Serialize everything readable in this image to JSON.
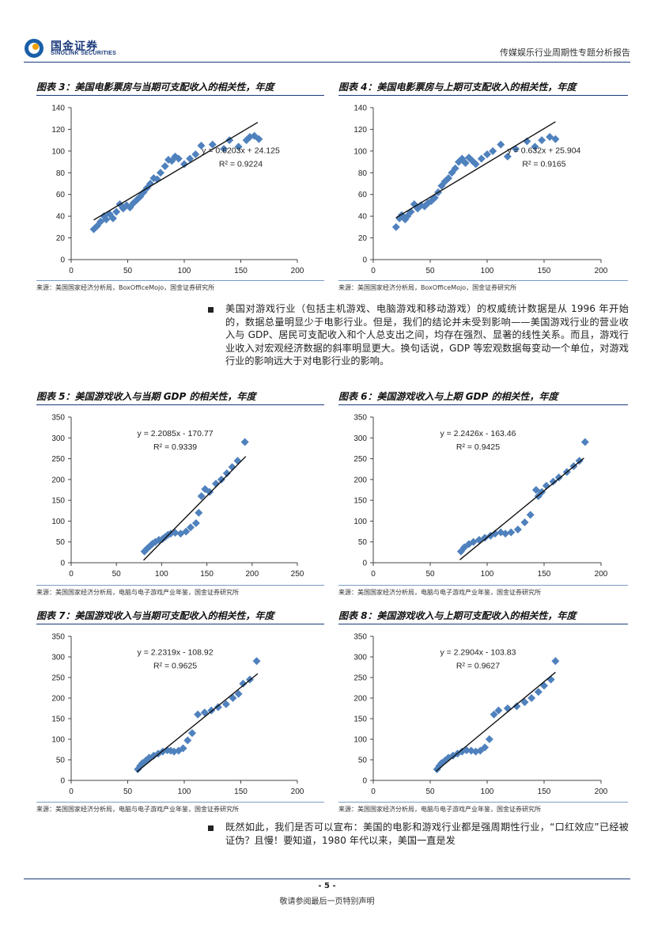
{
  "header": {
    "logo_cn": "国金证券",
    "logo_en": "SINOLINK SECURITIES",
    "report_title": "传媒娱乐行业周期性专题分析报告"
  },
  "paragraph1": "美国对游戏行业（包括主机游戏、电脑游戏和移动游戏）的权威统计数据是从 1996 年开始的，数据总量明显少于电影行业。但是，我们的结论并未受到影响——美国游戏行业的营业收入与 GDP、居民可支配收入和个人总支出之间，均存在强烈、显著的线性关系。而且，游戏行业收入对宏观经济数据的斜率明显更大。换句话说，GDP 等宏观数据每变动一个单位，对游戏行业的影响远大于对电影行业的影响。",
  "paragraph2": "既然如此，我们是否可以宣布：美国的电影和游戏行业都是强周期性行业，“口红效应”已经被证伪？且慢！要知道，1980 年代以来，美国一直是发",
  "footer": {
    "page": "- 5 -",
    "note": "敬请参阅最后一页特别声明"
  },
  "chart_data": [
    {
      "id": "fig3",
      "type": "scatter",
      "title": "图表 3：美国电影票房与当期可支配收入的相关性，年度",
      "source": "来源：美国国家经济分析局，BoxOfficeMojo，国金证券研究所",
      "xlim": [
        0,
        200
      ],
      "ylim": [
        0,
        140
      ],
      "xticks": [
        "0",
        "50",
        "100",
        "150",
        "200"
      ],
      "yticks": [
        "0",
        "20",
        "40",
        "60",
        "80",
        "100",
        "120",
        "140"
      ],
      "equation": "y = 0.6203x + 24.125",
      "r2": "R² = 0.9224",
      "trend": {
        "slope": 0.6203,
        "intercept": 24.125,
        "x0": 20,
        "x1": 165
      },
      "x": [
        20,
        23,
        26,
        29,
        31,
        34,
        37,
        40,
        43,
        46,
        49,
        52,
        55,
        58,
        61,
        64,
        67,
        70,
        73,
        76,
        79,
        83,
        86,
        89,
        92,
        95,
        100,
        105,
        110,
        115,
        125,
        135,
        140,
        148,
        155,
        158,
        162,
        166
      ],
      "y": [
        28,
        31,
        35,
        40,
        37,
        42,
        38,
        44,
        51,
        47,
        50,
        48,
        52,
        55,
        58,
        62,
        66,
        70,
        75,
        74,
        80,
        86,
        92,
        91,
        95,
        93,
        88,
        93,
        97,
        105,
        106,
        102,
        110,
        104,
        110,
        113,
        114,
        111
      ]
    },
    {
      "id": "fig4",
      "type": "scatter",
      "title": "图表 4：美国电影票房与上期可支配收入的相关性，年度",
      "source": "来源：美国国家经济分析局，BoxOfficeMojo，国金证券研究所",
      "xlim": [
        0,
        200
      ],
      "ylim": [
        0,
        140
      ],
      "xticks": [
        "0",
        "50",
        "100",
        "150",
        "200"
      ],
      "yticks": [
        "0",
        "20",
        "40",
        "60",
        "80",
        "100",
        "120",
        "140"
      ],
      "equation": "y = 0.632x + 25.904",
      "r2": "R² = 0.9165",
      "trend": {
        "slope": 0.632,
        "intercept": 25.904,
        "x0": 20,
        "x1": 160
      },
      "x": [
        20,
        23,
        25,
        28,
        30,
        33,
        36,
        39,
        42,
        45,
        48,
        51,
        54,
        57,
        60,
        63,
        66,
        69,
        72,
        75,
        78,
        81,
        84,
        87,
        90,
        95,
        100,
        105,
        112,
        118,
        125,
        135,
        142,
        148,
        155,
        160
      ],
      "y": [
        30,
        38,
        41,
        37,
        40,
        44,
        51,
        47,
        50,
        49,
        52,
        54,
        57,
        62,
        68,
        72,
        75,
        80,
        84,
        90,
        93,
        89,
        94,
        91,
        88,
        93,
        97,
        100,
        106,
        95,
        102,
        109,
        104,
        110,
        113,
        111
      ]
    },
    {
      "id": "fig5",
      "type": "scatter",
      "title": "图表 5：美国游戏收入与当期 GDP 的相关性，年度",
      "source": "来源：美国国家经济分析局，电脑与电子游戏产业年鉴，国金证券研究所",
      "xlim": [
        0,
        250
      ],
      "ylim": [
        0,
        350
      ],
      "xticks": [
        "0",
        "50",
        "100",
        "150",
        "200",
        "250"
      ],
      "yticks": [
        "0",
        "50",
        "100",
        "150",
        "200",
        "250",
        "300",
        "350"
      ],
      "equation": "y = 2.2085x - 170.77",
      "r2": "R² = 0.9339",
      "trend": {
        "slope": 2.2085,
        "intercept": -170.77,
        "x0": 80,
        "x1": 193
      },
      "x": [
        81,
        84,
        87,
        90,
        93,
        97,
        101,
        104,
        107,
        110,
        115,
        121,
        127,
        132,
        138,
        141,
        144,
        148,
        153,
        160,
        166,
        172,
        178,
        184,
        192
      ],
      "y": [
        27,
        34,
        40,
        46,
        50,
        55,
        57,
        62,
        67,
        70,
        72,
        70,
        75,
        85,
        95,
        120,
        160,
        177,
        170,
        190,
        200,
        215,
        230,
        245,
        290
      ]
    },
    {
      "id": "fig6",
      "type": "scatter",
      "title": "图表 6：美国游戏收入与上期 GDP 的相关性，年度",
      "source": "来源：美国国家经济分析局，电脑与电子游戏产业年鉴，国金证券研究所",
      "xlim": [
        0,
        200
      ],
      "ylim": [
        0,
        350
      ],
      "xticks": [
        "0",
        "50",
        "100",
        "150",
        "200"
      ],
      "yticks": [
        "0",
        "50",
        "100",
        "150",
        "200",
        "250",
        "300",
        "350"
      ],
      "equation": "y = 2.2426x - 163.46",
      "r2": "R² = 0.9425",
      "trend": {
        "slope": 2.2426,
        "intercept": -163.46,
        "x0": 76,
        "x1": 185
      },
      "x": [
        77,
        80,
        84,
        88,
        93,
        98,
        103,
        107,
        112,
        116,
        121,
        127,
        133,
        138,
        143,
        145,
        148,
        152,
        158,
        163,
        170,
        176,
        181,
        186
      ],
      "y": [
        27,
        37,
        45,
        50,
        55,
        60,
        65,
        70,
        73,
        70,
        73,
        80,
        97,
        115,
        175,
        160,
        170,
        185,
        195,
        205,
        218,
        232,
        245,
        290
      ]
    },
    {
      "id": "fig7",
      "type": "scatter",
      "title": "图表 7：美国游戏收入与当期可支配收入的相关性，年度",
      "source": "来源：美国国家经济分析局，电脑与电子游戏产业年鉴，国金证券研究所",
      "xlim": [
        0,
        200
      ],
      "ylim": [
        0,
        350
      ],
      "xticks": [
        "0",
        "50",
        "100",
        "150",
        "200"
      ],
      "yticks": [
        "0",
        "50",
        "100",
        "150",
        "200",
        "250",
        "300",
        "350"
      ],
      "equation": "y = 2.2319x - 108.92",
      "r2": "R² = 0.9625",
      "trend": {
        "slope": 2.2319,
        "intercept": -108.92,
        "x0": 58,
        "x1": 165
      },
      "x": [
        59,
        61,
        63,
        66,
        69,
        73,
        77,
        81,
        85,
        88,
        91,
        95,
        99,
        103,
        107,
        112,
        118,
        124,
        130,
        137,
        143,
        148,
        152,
        158,
        164
      ],
      "y": [
        27,
        35,
        42,
        48,
        55,
        60,
        65,
        70,
        73,
        72,
        70,
        72,
        78,
        97,
        115,
        160,
        165,
        170,
        178,
        185,
        200,
        210,
        235,
        245,
        290
      ]
    },
    {
      "id": "fig8",
      "type": "scatter",
      "title": "图表 8：美国游戏收入与上期可支配收入的相关性，年度",
      "source": "来源：美国国家经济分析局，电脑与电子游戏产业年鉴，国金证券研究所",
      "xlim": [
        0,
        200
      ],
      "ylim": [
        0,
        350
      ],
      "xticks": [
        "0",
        "50",
        "100",
        "150",
        "200"
      ],
      "yticks": [
        "0",
        "50",
        "100",
        "150",
        "200",
        "250",
        "300",
        "350"
      ],
      "equation": "y = 2.2904x - 103.83",
      "r2": "R² = 0.9627",
      "trend": {
        "slope": 2.2904,
        "intercept": -103.83,
        "x0": 55,
        "x1": 160
      },
      "x": [
        56,
        58,
        60,
        63,
        66,
        70,
        74,
        78,
        82,
        86,
        90,
        94,
        98,
        102,
        106,
        110,
        118,
        126,
        133,
        139,
        145,
        150,
        156,
        160
      ],
      "y": [
        27,
        35,
        42,
        48,
        55,
        60,
        65,
        70,
        73,
        72,
        70,
        72,
        80,
        100,
        160,
        170,
        175,
        180,
        190,
        200,
        215,
        230,
        245,
        290
      ]
    }
  ]
}
